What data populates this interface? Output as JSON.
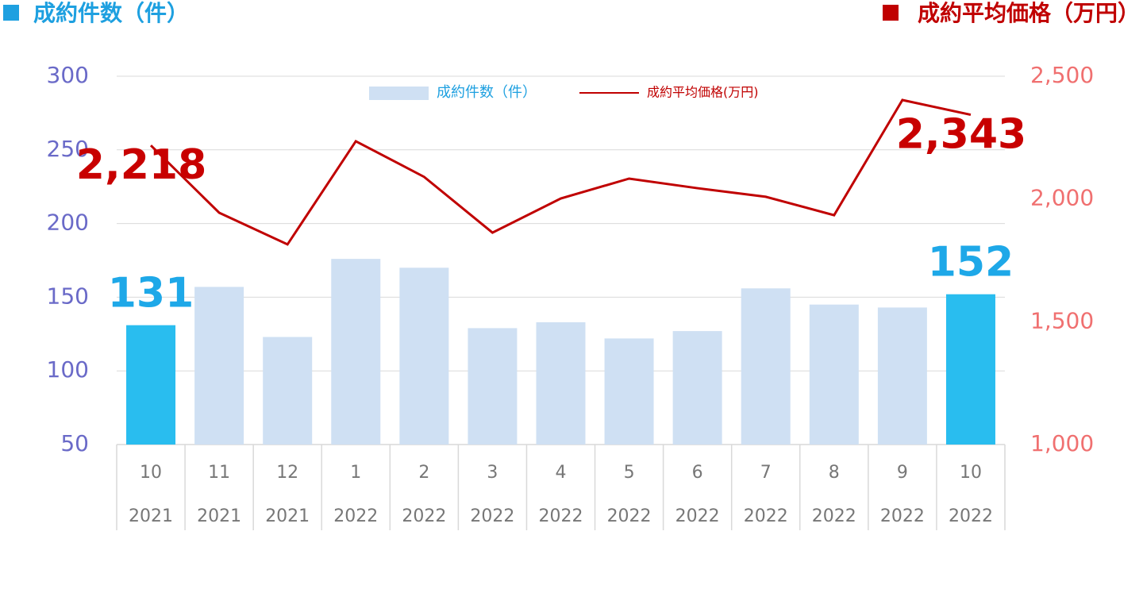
{
  "chart_data": {
    "type": "bar",
    "left_axis_title": "成約件数（件）",
    "right_axis_title": "成約平均価格（万円）",
    "categories": [
      [
        "10",
        "2021"
      ],
      [
        "11",
        "2021"
      ],
      [
        "12",
        "2021"
      ],
      [
        "1",
        "2022"
      ],
      [
        "2",
        "2022"
      ],
      [
        "3",
        "2022"
      ],
      [
        "4",
        "2022"
      ],
      [
        "5",
        "2022"
      ],
      [
        "6",
        "2022"
      ],
      [
        "7",
        "2022"
      ],
      [
        "8",
        "2022"
      ],
      [
        "9",
        "2022"
      ],
      [
        "10",
        "2022"
      ]
    ],
    "series": [
      {
        "name": "成約件数（件）",
        "type": "bar",
        "color": "#cfe0f3",
        "colors": [
          "#29bdef",
          "#cfe0f3",
          "#cfe0f3",
          "#cfe0f3",
          "#cfe0f3",
          "#cfe0f3",
          "#cfe0f3",
          "#cfe0f3",
          "#cfe0f3",
          "#cfe0f3",
          "#cfe0f3",
          "#cfe0f3",
          "#29bdef"
        ],
        "values": [
          131,
          157,
          123,
          176,
          170,
          129,
          133,
          122,
          127,
          156,
          145,
          143,
          152
        ],
        "value_labels": [
          "131",
          null,
          null,
          null,
          null,
          null,
          null,
          null,
          null,
          null,
          null,
          null,
          "152"
        ]
      },
      {
        "name": "成約平均価格(万円)",
        "type": "line",
        "axis": "y2",
        "color": "#c00000",
        "values": [
          2218,
          1944,
          1815,
          2235,
          2090,
          1863,
          2002,
          2083,
          2044,
          2009,
          1934,
          2403,
          2343
        ],
        "value_labels": [
          "2,218",
          null,
          null,
          null,
          null,
          null,
          null,
          null,
          null,
          null,
          null,
          null,
          "2,343"
        ]
      }
    ],
    "ylim": [
      50,
      300
    ],
    "yticks": [
      50,
      100,
      150,
      200,
      250,
      300
    ],
    "y2lim": [
      1000,
      2500
    ],
    "y2ticks": [
      {
        "value": 1000,
        "label": "1,000"
      },
      {
        "value": 1500,
        "label": "1,500"
      },
      {
        "value": 2000,
        "label": "2,000"
      },
      {
        "value": 2500,
        "label": "2,500"
      }
    ],
    "grid": true
  }
}
